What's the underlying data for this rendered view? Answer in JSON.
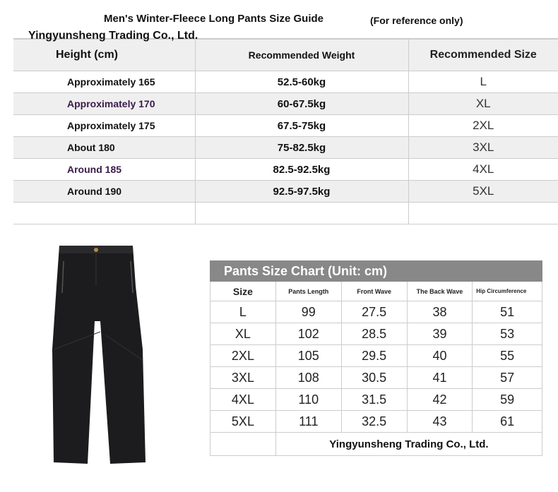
{
  "guide": {
    "title": "Men's Winter-Fleece Long Pants Size Guide",
    "note": "(For reference only)",
    "brand": "Yingyunsheng Trading Co., Ltd.",
    "headers": [
      "Height (cm)",
      "Recommended Weight",
      "Recommended Size"
    ],
    "rows": [
      {
        "height": "Approximately 165",
        "weight": "52.5-60kg",
        "size": "L"
      },
      {
        "height": "Approximately 170",
        "weight": "60-67.5kg",
        "size": "XL"
      },
      {
        "height": "Approximately 175",
        "weight": "67.5-75kg",
        "size": "2XL"
      },
      {
        "height": "About 180",
        "weight": "75-82.5kg",
        "size": "3XL"
      },
      {
        "height": "Around 185",
        "weight": "82.5-92.5kg",
        "size": "4XL"
      },
      {
        "height": "Around 190",
        "weight": "92.5-97.5kg",
        "size": "5XL"
      }
    ]
  },
  "chart": {
    "title": "Pants Size Chart (Unit: cm)",
    "headers": [
      "Size",
      "Pants Length",
      "Front Wave",
      "The Back Wave",
      "Hip Circumference"
    ],
    "rows": [
      [
        "L",
        "99",
        "27.5",
        "38",
        "51"
      ],
      [
        "XL",
        "102",
        "28.5",
        "39",
        "53"
      ],
      [
        "2XL",
        "105",
        "29.5",
        "40",
        "55"
      ],
      [
        "3XL",
        "108",
        "30.5",
        "41",
        "57"
      ],
      [
        "4XL",
        "110",
        "31.5",
        "42",
        "59"
      ],
      [
        "5XL",
        "111",
        "32.5",
        "43",
        "61"
      ]
    ],
    "brand": "Yingyunsheng Trading Co., Ltd."
  },
  "product_image": "black-pants"
}
